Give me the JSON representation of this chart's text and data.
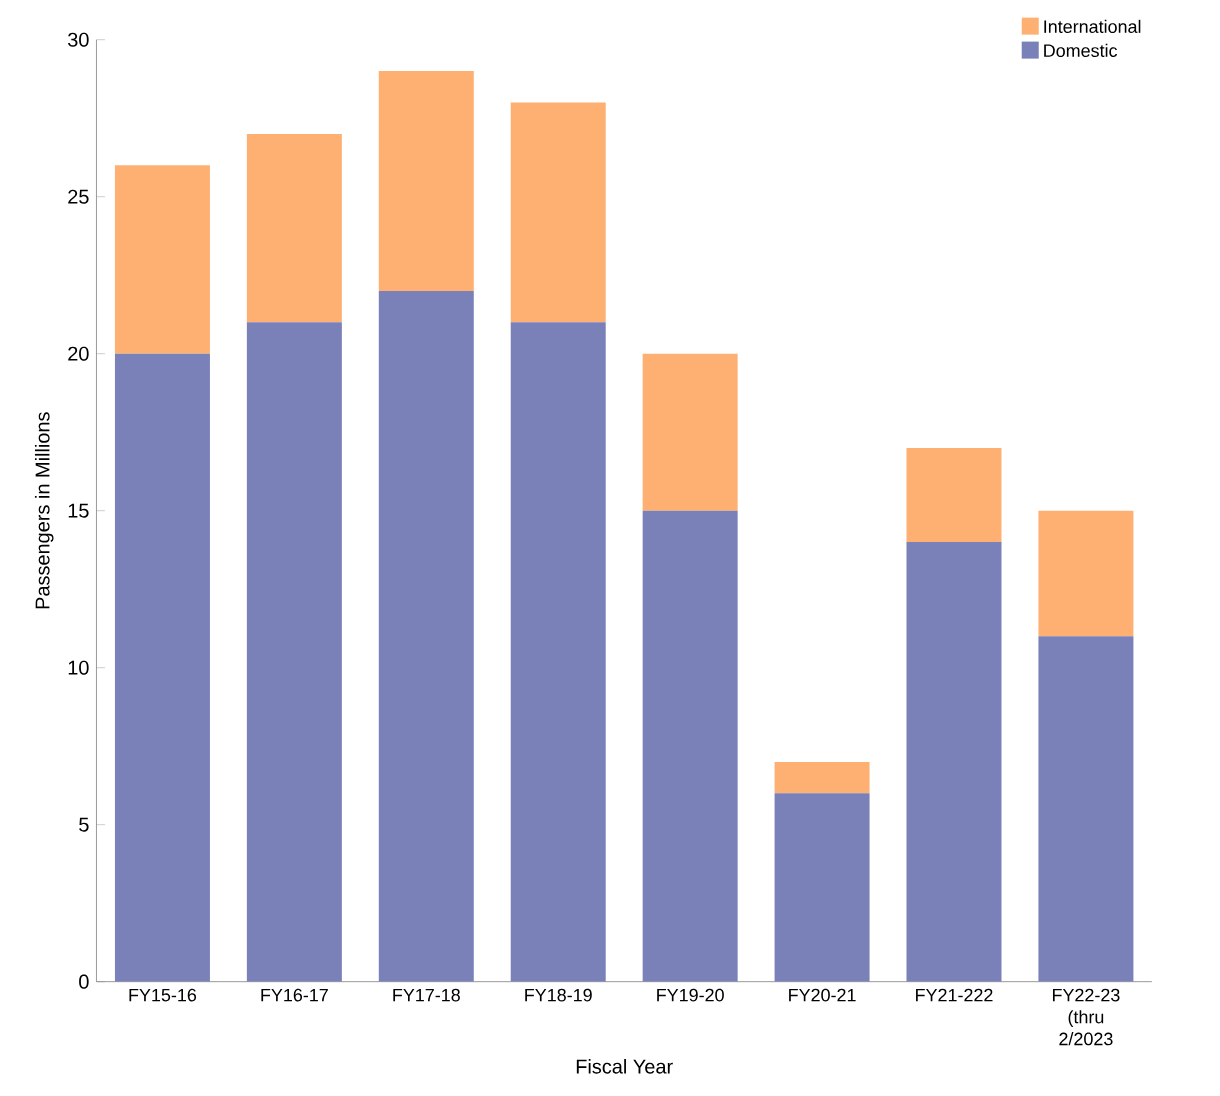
{
  "chart_data": {
    "type": "bar",
    "stacked": true,
    "xlabel": "Fiscal Year",
    "ylabel": "Passengers in Millions",
    "categories": [
      "FY15-16",
      "FY16-17",
      "FY17-18",
      "FY18-19",
      "FY19-20",
      "FY20-21",
      "FY21-222",
      "FY22-23 (thru 2/2023"
    ],
    "series": [
      {
        "name": "Domestic",
        "color": "#7a80b8",
        "values": [
          20,
          21,
          22,
          21,
          15,
          6,
          14,
          11
        ]
      },
      {
        "name": "International",
        "color": "#fdb072",
        "values": [
          6,
          6,
          7,
          7,
          5,
          1,
          3,
          4
        ]
      }
    ],
    "ylim": [
      0,
      30
    ],
    "yticks": [
      0,
      5,
      10,
      15,
      20,
      25,
      30
    ],
    "legend": "top right",
    "grid": false
  }
}
